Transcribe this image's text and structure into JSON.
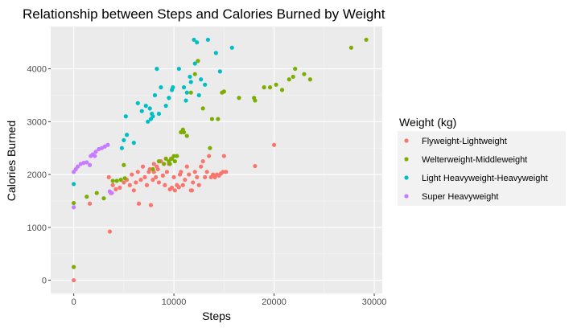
{
  "chart_data": {
    "type": "scatter",
    "title": "Relationship between Steps and Calories Burned by Weight",
    "xlabel": "Steps",
    "ylabel": "Calories Burned",
    "xlim": [
      -2300,
      30800
    ],
    "ylim": [
      -250,
      4800
    ],
    "x_ticks": [
      0,
      10000,
      20000,
      30000
    ],
    "x_tick_labels": [
      "0",
      "10000",
      "20000",
      "30000"
    ],
    "y_ticks": [
      0,
      1000,
      2000,
      3000,
      4000
    ],
    "y_tick_labels": [
      "0",
      "1000",
      "2000",
      "3000",
      "4000"
    ],
    "grid": true,
    "background": "#ebebeb",
    "legend": {
      "title": "Weight (kg)",
      "position": "right"
    },
    "series": [
      {
        "name": "Flyweight-Lightweight",
        "color": "#F8766D",
        "points": [
          [
            0,
            0
          ],
          [
            1600,
            1450
          ],
          [
            3600,
            920
          ],
          [
            3500,
            1950
          ],
          [
            3700,
            1650
          ],
          [
            3900,
            1800
          ],
          [
            4200,
            1720
          ],
          [
            4600,
            1750
          ],
          [
            5000,
            1850
          ],
          [
            5300,
            1900
          ],
          [
            5600,
            1800
          ],
          [
            5800,
            2000
          ],
          [
            6000,
            1700
          ],
          [
            6200,
            1850
          ],
          [
            6400,
            2050
          ],
          [
            6500,
            1450
          ],
          [
            6700,
            1900
          ],
          [
            6900,
            2150
          ],
          [
            7100,
            1950
          ],
          [
            7300,
            1800
          ],
          [
            7500,
            2050
          ],
          [
            7700,
            1420
          ],
          [
            7900,
            1900
          ],
          [
            8000,
            2200
          ],
          [
            8200,
            1950
          ],
          [
            8400,
            2100
          ],
          [
            8500,
            1850
          ],
          [
            8700,
            2250
          ],
          [
            8900,
            1980
          ],
          [
            9100,
            1800
          ],
          [
            9300,
            2050
          ],
          [
            9500,
            2200
          ],
          [
            9600,
            1720
          ],
          [
            9800,
            1750
          ],
          [
            10000,
            1950
          ],
          [
            10100,
            1700
          ],
          [
            10300,
            1800
          ],
          [
            10500,
            1760
          ],
          [
            10700,
            2050
          ],
          [
            10900,
            1800
          ],
          [
            11100,
            1900
          ],
          [
            11300,
            2150
          ],
          [
            11500,
            2000
          ],
          [
            11700,
            1700
          ],
          [
            11900,
            1850
          ],
          [
            12100,
            2050
          ],
          [
            12300,
            1950
          ],
          [
            12500,
            1800
          ],
          [
            12700,
            2150
          ],
          [
            12900,
            2250
          ],
          [
            13100,
            1950
          ],
          [
            13300,
            2050
          ],
          [
            13500,
            2350
          ],
          [
            13700,
            1950
          ],
          [
            13900,
            2000
          ],
          [
            14100,
            1950
          ],
          [
            14300,
            2000
          ],
          [
            14500,
            1980
          ],
          [
            14700,
            2020
          ],
          [
            14900,
            2050
          ],
          [
            15000,
            2350
          ],
          [
            15200,
            2050
          ],
          [
            18100,
            2160
          ],
          [
            20000,
            2560
          ],
          [
            8000,
            2050
          ],
          [
            8300,
            2150
          ],
          [
            7600,
            2100
          ],
          [
            9700,
            2300
          ],
          [
            10600,
            2000
          ],
          [
            11800,
            1700
          ]
        ]
      },
      {
        "name": "Welterweight-Middleweight",
        "color": "#7CAE00",
        "points": [
          [
            0,
            250
          ],
          [
            0,
            1460
          ],
          [
            1300,
            1580
          ],
          [
            2300,
            1650
          ],
          [
            3000,
            1550
          ],
          [
            3900,
            1880
          ],
          [
            4300,
            1880
          ],
          [
            4700,
            1900
          ],
          [
            5100,
            1930
          ],
          [
            5000,
            2180
          ],
          [
            7900,
            2100
          ],
          [
            8500,
            2250
          ],
          [
            9000,
            2200
          ],
          [
            9200,
            2300
          ],
          [
            9500,
            2250
          ],
          [
            9800,
            2300
          ],
          [
            10100,
            2250
          ],
          [
            10300,
            2350
          ],
          [
            10700,
            2800
          ],
          [
            10900,
            2850
          ],
          [
            11000,
            2800
          ],
          [
            11300,
            2730
          ],
          [
            11700,
            3550
          ],
          [
            12100,
            3900
          ],
          [
            12400,
            4150
          ],
          [
            12900,
            3250
          ],
          [
            13600,
            2500
          ],
          [
            13800,
            3050
          ],
          [
            14400,
            3050
          ],
          [
            14800,
            3550
          ],
          [
            15000,
            3570
          ],
          [
            16500,
            3450
          ],
          [
            18000,
            3450
          ],
          [
            18100,
            3400
          ],
          [
            19000,
            3650
          ],
          [
            19600,
            3650
          ],
          [
            20200,
            3700
          ],
          [
            20800,
            3600
          ],
          [
            21500,
            3800
          ],
          [
            21900,
            3850
          ],
          [
            22100,
            4000
          ],
          [
            23000,
            3900
          ],
          [
            23600,
            3800
          ],
          [
            27700,
            4400
          ],
          [
            29200,
            4550
          ],
          [
            10000,
            2350
          ],
          [
            9600,
            2200
          ]
        ]
      },
      {
        "name": "Light Heavyweight-Heavyweight",
        "color": "#00BFC4",
        "points": [
          [
            0,
            1820
          ],
          [
            4800,
            2500
          ],
          [
            5000,
            2650
          ],
          [
            5200,
            3100
          ],
          [
            5300,
            2750
          ],
          [
            6000,
            2600
          ],
          [
            6400,
            3350
          ],
          [
            6800,
            3200
          ],
          [
            7200,
            3300
          ],
          [
            7400,
            3000
          ],
          [
            7600,
            3250
          ],
          [
            7700,
            3050
          ],
          [
            7900,
            3100
          ],
          [
            8100,
            3500
          ],
          [
            8300,
            4000
          ],
          [
            8500,
            3150
          ],
          [
            8700,
            3650
          ],
          [
            9200,
            3300
          ],
          [
            9500,
            3450
          ],
          [
            9800,
            3600
          ],
          [
            9900,
            3650
          ],
          [
            10500,
            4000
          ],
          [
            11000,
            3650
          ],
          [
            11200,
            3400
          ],
          [
            11300,
            3550
          ],
          [
            11700,
            3750
          ],
          [
            12000,
            4550
          ],
          [
            12100,
            4100
          ],
          [
            12300,
            4500
          ],
          [
            12500,
            3500
          ],
          [
            12700,
            3800
          ],
          [
            13100,
            3700
          ],
          [
            13400,
            4550
          ],
          [
            14200,
            4300
          ],
          [
            14600,
            3950
          ],
          [
            15800,
            4400
          ],
          [
            11600,
            3850
          ],
          [
            7800,
            3150
          ]
        ]
      },
      {
        "name": "Super Heavyweight",
        "color": "#C77CFF",
        "points": [
          [
            0,
            1380
          ],
          [
            0,
            2050
          ],
          [
            200,
            2100
          ],
          [
            400,
            2150
          ],
          [
            700,
            2200
          ],
          [
            1000,
            2220
          ],
          [
            1300,
            2230
          ],
          [
            1600,
            2180
          ],
          [
            1700,
            2350
          ],
          [
            1900,
            2380
          ],
          [
            2100,
            2350
          ],
          [
            2200,
            2430
          ],
          [
            2500,
            2480
          ],
          [
            2800,
            2500
          ],
          [
            3100,
            2530
          ],
          [
            3400,
            2560
          ],
          [
            3600,
            1680
          ],
          [
            3800,
            1650
          ]
        ]
      }
    ]
  }
}
